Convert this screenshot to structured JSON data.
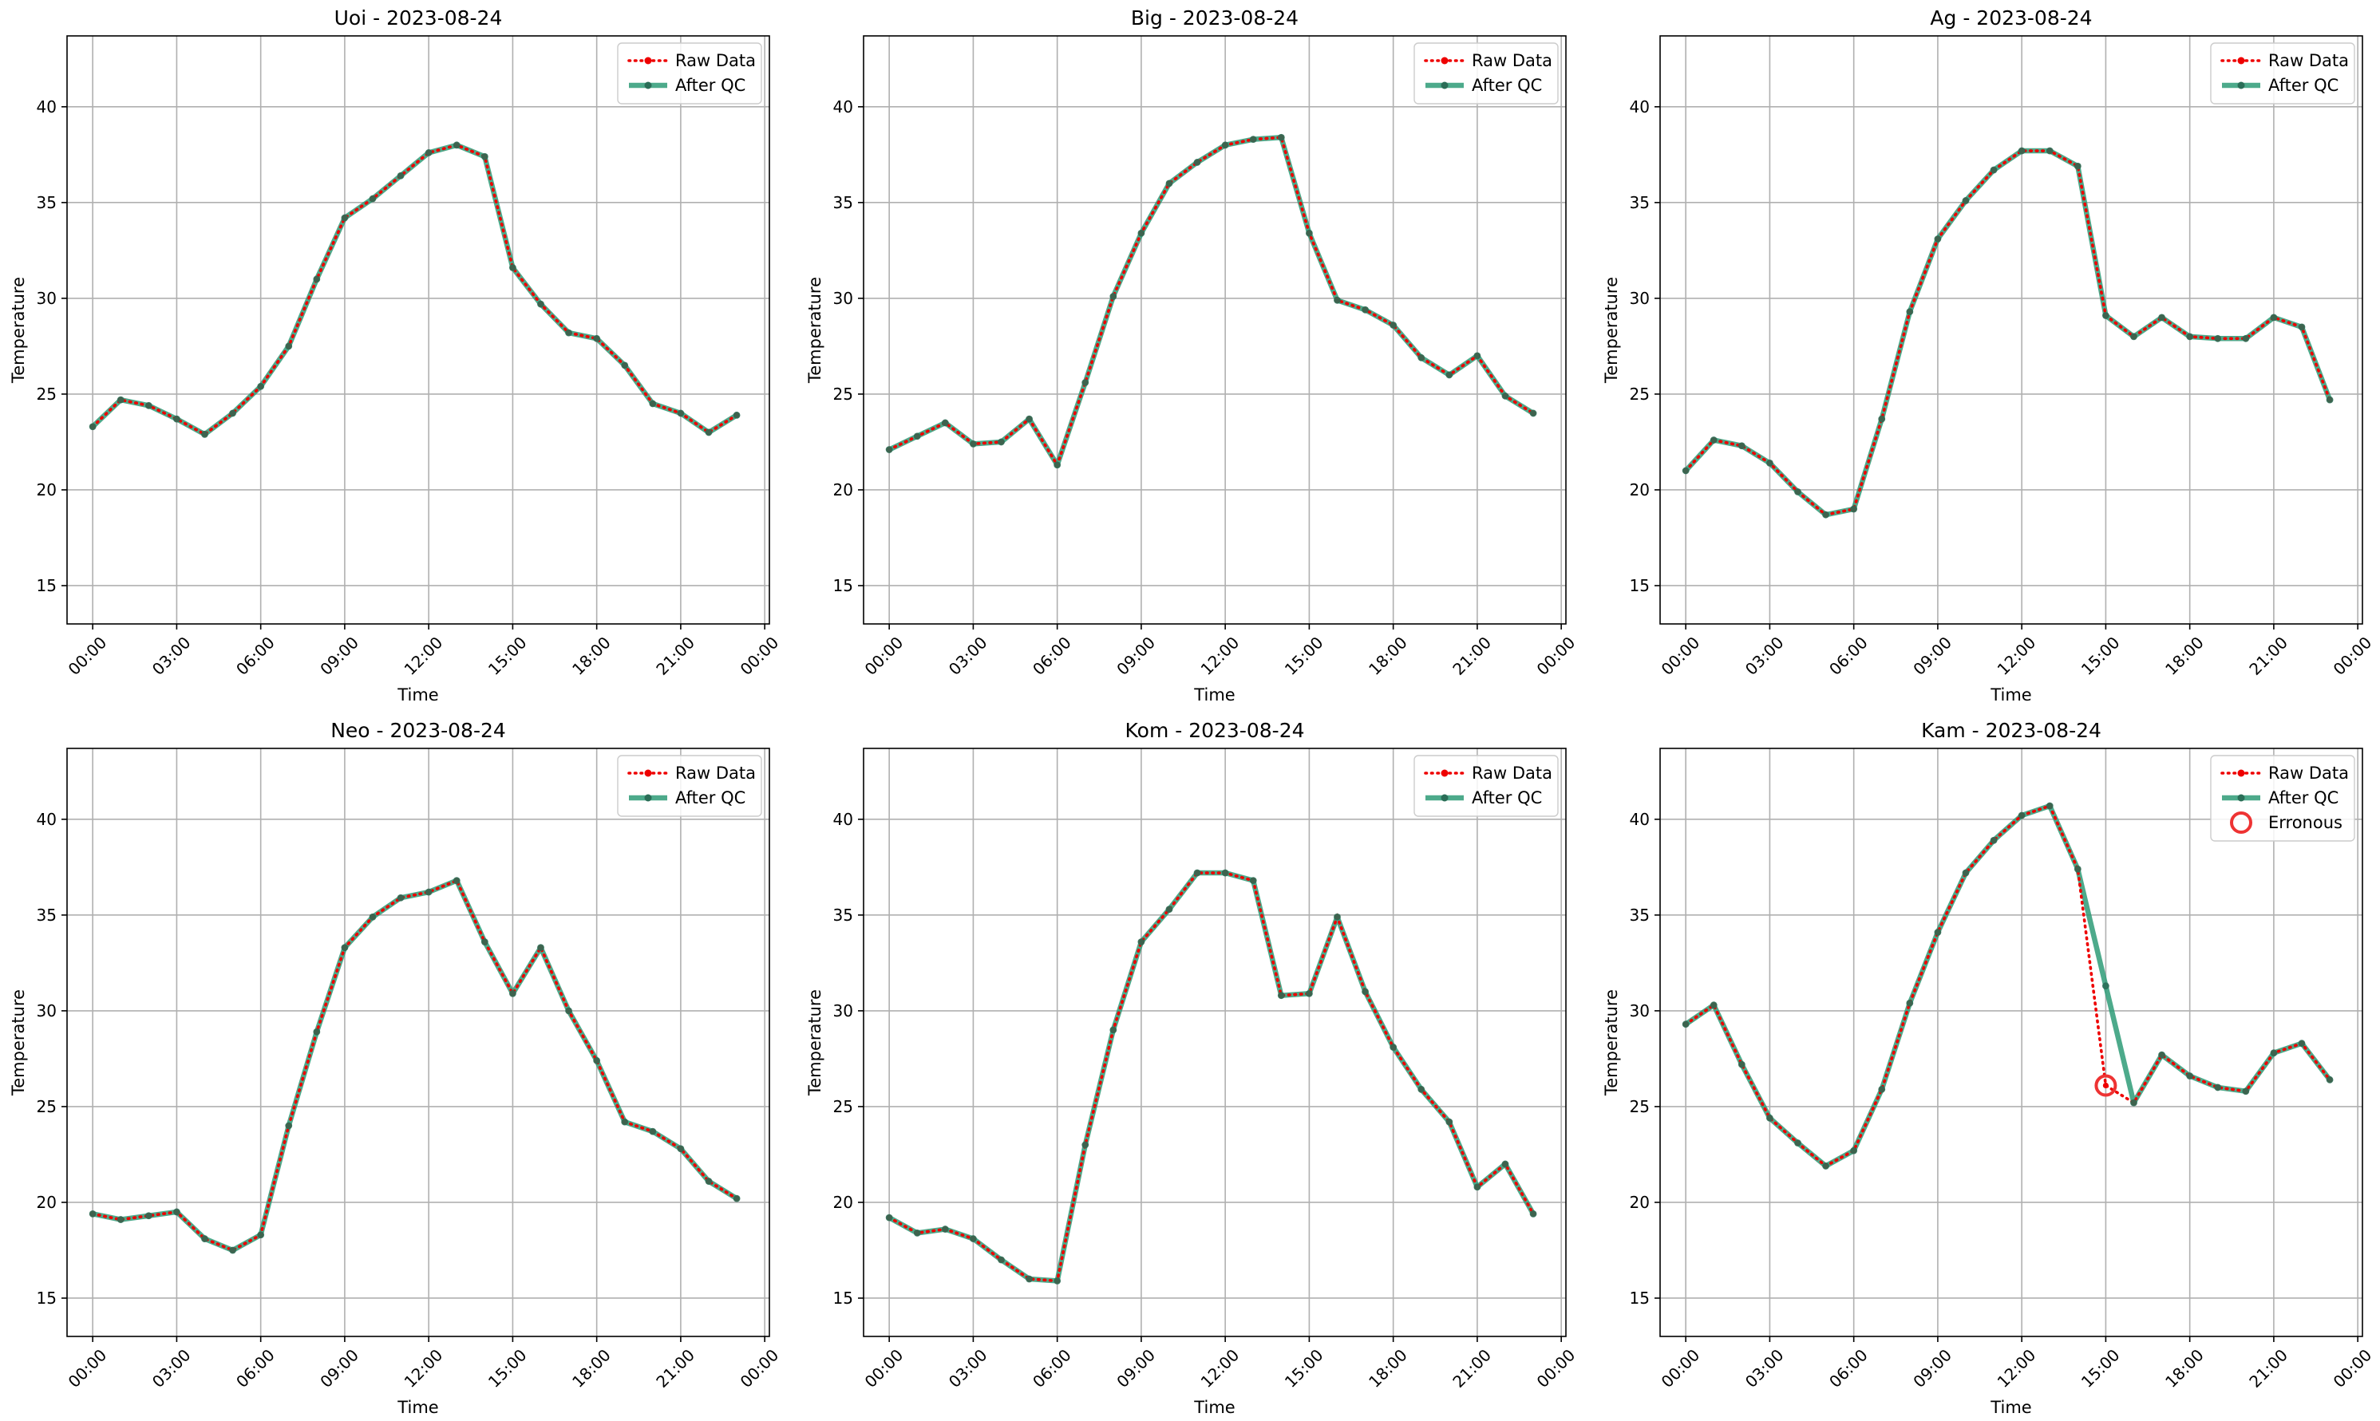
{
  "colors": {
    "raw": "#ee0000",
    "qc": "#2e9b77",
    "marker": "#2a6e57",
    "erroneous": "#ee3333",
    "grid": "#b0b0b0"
  },
  "chart_data": [
    {
      "type": "line",
      "title": "Uoi - 2023-08-24",
      "xlabel": "Time",
      "ylabel": "Temperature",
      "ylim": [
        13,
        43.7
      ],
      "xlim": [
        "-00:55",
        "24:10"
      ],
      "yticks": [
        15,
        20,
        25,
        30,
        35,
        40
      ],
      "xticks": [
        "00:00",
        "03:00",
        "06:00",
        "09:00",
        "12:00",
        "15:00",
        "18:00",
        "21:00",
        "00:00"
      ],
      "grid": true,
      "legend_position": "upper right",
      "legend": [
        "Raw Data",
        "After QC"
      ],
      "x": [
        "00:00",
        "01:00",
        "02:00",
        "03:00",
        "04:00",
        "05:00",
        "06:00",
        "07:00",
        "08:00",
        "09:00",
        "10:00",
        "11:00",
        "12:00",
        "13:00",
        "14:00",
        "15:00",
        "16:00",
        "17:00",
        "18:00",
        "19:00",
        "20:00",
        "21:00",
        "22:00",
        "23:00"
      ],
      "series": [
        {
          "name": "Raw Data",
          "values": [
            23.3,
            24.7,
            24.4,
            23.7,
            22.9,
            24.0,
            25.4,
            27.5,
            31.0,
            34.2,
            35.2,
            36.4,
            37.6,
            38.0,
            37.4,
            31.6,
            29.7,
            28.2,
            27.9,
            26.5,
            24.5,
            24.0,
            23.0,
            23.9
          ]
        },
        {
          "name": "After QC",
          "values": [
            23.3,
            24.7,
            24.4,
            23.7,
            22.9,
            24.0,
            25.4,
            27.5,
            31.0,
            34.2,
            35.2,
            36.4,
            37.6,
            38.0,
            37.4,
            31.6,
            29.7,
            28.2,
            27.9,
            26.5,
            24.5,
            24.0,
            23.0,
            23.9
          ]
        }
      ]
    },
    {
      "type": "line",
      "title": "Big - 2023-08-24",
      "xlabel": "Time",
      "ylabel": "Temperature",
      "ylim": [
        13,
        43.7
      ],
      "xlim": [
        "-00:55",
        "24:10"
      ],
      "yticks": [
        15,
        20,
        25,
        30,
        35,
        40
      ],
      "xticks": [
        "00:00",
        "03:00",
        "06:00",
        "09:00",
        "12:00",
        "15:00",
        "18:00",
        "21:00",
        "00:00"
      ],
      "grid": true,
      "legend_position": "upper right",
      "legend": [
        "Raw Data",
        "After QC"
      ],
      "x": [
        "00:00",
        "01:00",
        "02:00",
        "03:00",
        "04:00",
        "05:00",
        "06:00",
        "07:00",
        "08:00",
        "09:00",
        "10:00",
        "11:00",
        "12:00",
        "13:00",
        "14:00",
        "15:00",
        "16:00",
        "17:00",
        "18:00",
        "19:00",
        "20:00",
        "21:00",
        "22:00",
        "23:00"
      ],
      "series": [
        {
          "name": "Raw Data",
          "values": [
            22.1,
            22.8,
            23.5,
            22.4,
            22.5,
            23.7,
            21.3,
            25.6,
            30.1,
            33.4,
            36.0,
            37.1,
            38.0,
            38.3,
            38.4,
            33.4,
            29.9,
            29.4,
            28.6,
            26.9,
            26.0,
            27.0,
            24.9,
            24.0
          ]
        },
        {
          "name": "After QC",
          "values": [
            22.1,
            22.8,
            23.5,
            22.4,
            22.5,
            23.7,
            21.3,
            25.6,
            30.1,
            33.4,
            36.0,
            37.1,
            38.0,
            38.3,
            38.4,
            33.4,
            29.9,
            29.4,
            28.6,
            26.9,
            26.0,
            27.0,
            24.9,
            24.0
          ]
        }
      ]
    },
    {
      "type": "line",
      "title": "Ag - 2023-08-24",
      "xlabel": "Time",
      "ylabel": "Temperature",
      "ylim": [
        13,
        43.7
      ],
      "xlim": [
        "-00:55",
        "24:10"
      ],
      "yticks": [
        15,
        20,
        25,
        30,
        35,
        40
      ],
      "xticks": [
        "00:00",
        "03:00",
        "06:00",
        "09:00",
        "12:00",
        "15:00",
        "18:00",
        "21:00",
        "00:00"
      ],
      "grid": true,
      "legend_position": "upper right",
      "legend": [
        "Raw Data",
        "After QC"
      ],
      "x": [
        "00:00",
        "01:00",
        "02:00",
        "03:00",
        "04:00",
        "05:00",
        "06:00",
        "07:00",
        "08:00",
        "09:00",
        "10:00",
        "11:00",
        "12:00",
        "13:00",
        "14:00",
        "15:00",
        "16:00",
        "17:00",
        "18:00",
        "19:00",
        "20:00",
        "21:00",
        "22:00",
        "23:00"
      ],
      "series": [
        {
          "name": "Raw Data",
          "values": [
            21.0,
            22.6,
            22.3,
            21.4,
            19.9,
            18.7,
            19.0,
            23.7,
            29.3,
            33.1,
            35.1,
            36.7,
            37.7,
            37.7,
            36.9,
            29.1,
            28.0,
            29.0,
            28.0,
            27.9,
            27.9,
            29.0,
            28.5,
            24.7
          ]
        },
        {
          "name": "After QC",
          "values": [
            21.0,
            22.6,
            22.3,
            21.4,
            19.9,
            18.7,
            19.0,
            23.7,
            29.3,
            33.1,
            35.1,
            36.7,
            37.7,
            37.7,
            36.9,
            29.1,
            28.0,
            29.0,
            28.0,
            27.9,
            27.9,
            29.0,
            28.5,
            24.7
          ]
        }
      ]
    },
    {
      "type": "line",
      "title": "Neo - 2023-08-24",
      "xlabel": "Time",
      "ylabel": "Temperature",
      "ylim": [
        13,
        43.7
      ],
      "xlim": [
        "-00:55",
        "24:10"
      ],
      "yticks": [
        15,
        20,
        25,
        30,
        35,
        40
      ],
      "xticks": [
        "00:00",
        "03:00",
        "06:00",
        "09:00",
        "12:00",
        "15:00",
        "18:00",
        "21:00",
        "00:00"
      ],
      "grid": true,
      "legend_position": "upper right",
      "legend": [
        "Raw Data",
        "After QC"
      ],
      "x": [
        "00:00",
        "01:00",
        "02:00",
        "03:00",
        "04:00",
        "05:00",
        "06:00",
        "07:00",
        "08:00",
        "09:00",
        "10:00",
        "11:00",
        "12:00",
        "13:00",
        "14:00",
        "15:00",
        "16:00",
        "17:00",
        "18:00",
        "19:00",
        "20:00",
        "21:00",
        "22:00",
        "23:00"
      ],
      "series": [
        {
          "name": "Raw Data",
          "values": [
            19.4,
            19.1,
            19.3,
            19.5,
            18.1,
            17.5,
            18.3,
            24.0,
            28.9,
            33.3,
            34.9,
            35.9,
            36.2,
            36.8,
            33.6,
            30.9,
            33.3,
            30.0,
            27.4,
            24.2,
            23.7,
            22.8,
            21.1,
            20.2
          ]
        },
        {
          "name": "After QC",
          "values": [
            19.4,
            19.1,
            19.3,
            19.5,
            18.1,
            17.5,
            18.3,
            24.0,
            28.9,
            33.3,
            34.9,
            35.9,
            36.2,
            36.8,
            33.6,
            30.9,
            33.3,
            30.0,
            27.4,
            24.2,
            23.7,
            22.8,
            21.1,
            20.2
          ]
        }
      ]
    },
    {
      "type": "line",
      "title": "Kom - 2023-08-24",
      "xlabel": "Time",
      "ylabel": "Temperature",
      "ylim": [
        13,
        43.7
      ],
      "xlim": [
        "-00:55",
        "24:10"
      ],
      "yticks": [
        15,
        20,
        25,
        30,
        35,
        40
      ],
      "xticks": [
        "00:00",
        "03:00",
        "06:00",
        "09:00",
        "12:00",
        "15:00",
        "18:00",
        "21:00",
        "00:00"
      ],
      "grid": true,
      "legend_position": "upper right",
      "legend": [
        "Raw Data",
        "After QC"
      ],
      "x": [
        "00:00",
        "01:00",
        "02:00",
        "03:00",
        "04:00",
        "05:00",
        "06:00",
        "07:00",
        "08:00",
        "09:00",
        "10:00",
        "11:00",
        "12:00",
        "13:00",
        "14:00",
        "15:00",
        "16:00",
        "17:00",
        "18:00",
        "19:00",
        "20:00",
        "21:00",
        "22:00",
        "23:00"
      ],
      "series": [
        {
          "name": "Raw Data",
          "values": [
            19.2,
            18.4,
            18.6,
            18.1,
            17.0,
            16.0,
            15.9,
            23.0,
            29.0,
            33.6,
            35.3,
            37.2,
            37.2,
            36.8,
            30.8,
            30.9,
            34.9,
            31.0,
            28.1,
            25.9,
            24.2,
            20.8,
            22.0,
            19.4
          ]
        },
        {
          "name": "After QC",
          "values": [
            19.2,
            18.4,
            18.6,
            18.1,
            17.0,
            16.0,
            15.9,
            23.0,
            29.0,
            33.6,
            35.3,
            37.2,
            37.2,
            36.8,
            30.8,
            30.9,
            34.9,
            31.0,
            28.1,
            25.9,
            24.2,
            20.8,
            22.0,
            19.4
          ]
        }
      ]
    },
    {
      "type": "line",
      "title": "Kam - 2023-08-24",
      "xlabel": "Time",
      "ylabel": "Temperature",
      "ylim": [
        13,
        43.7
      ],
      "xlim": [
        "-00:55",
        "24:10"
      ],
      "yticks": [
        15,
        20,
        25,
        30,
        35,
        40
      ],
      "xticks": [
        "00:00",
        "03:00",
        "06:00",
        "09:00",
        "12:00",
        "15:00",
        "18:00",
        "21:00",
        "00:00"
      ],
      "grid": true,
      "legend_position": "upper right",
      "legend": [
        "Raw Data",
        "After QC",
        "Erronous"
      ],
      "x": [
        "00:00",
        "01:00",
        "02:00",
        "03:00",
        "04:00",
        "05:00",
        "06:00",
        "07:00",
        "08:00",
        "09:00",
        "10:00",
        "11:00",
        "12:00",
        "13:00",
        "14:00",
        "15:00",
        "16:00",
        "17:00",
        "18:00",
        "19:00",
        "20:00",
        "21:00",
        "22:00",
        "23:00"
      ],
      "series": [
        {
          "name": "Raw Data",
          "values": [
            29.3,
            30.3,
            27.2,
            24.4,
            23.1,
            21.9,
            22.7,
            25.9,
            30.4,
            34.1,
            37.2,
            38.9,
            40.2,
            40.7,
            37.4,
            26.1,
            25.2,
            27.7,
            26.6,
            26.0,
            25.8,
            27.8,
            28.3,
            26.4
          ]
        },
        {
          "name": "After QC",
          "values": [
            29.3,
            30.3,
            27.2,
            24.4,
            23.1,
            21.9,
            22.7,
            25.9,
            30.4,
            34.1,
            37.2,
            38.9,
            40.2,
            40.7,
            37.4,
            31.3,
            25.2,
            27.7,
            26.6,
            26.0,
            25.8,
            27.8,
            28.3,
            26.4
          ]
        },
        {
          "name": "Erronous",
          "points": [
            {
              "x": "15:00",
              "y": 26.1
            }
          ]
        }
      ]
    }
  ]
}
